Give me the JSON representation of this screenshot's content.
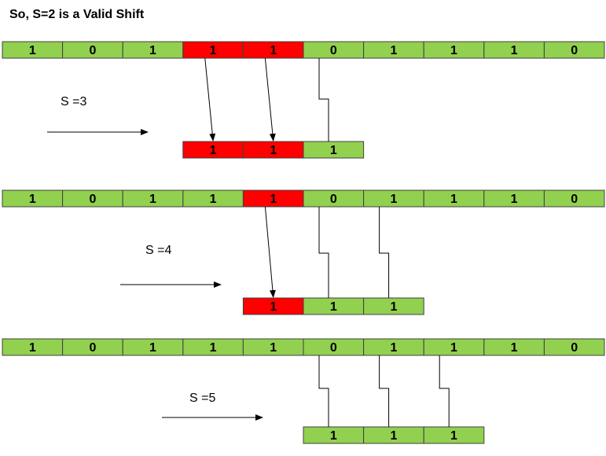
{
  "title": "So, S=2 is a Valid Shift",
  "colors": {
    "match": "#ff0000",
    "normal": "#92d050",
    "border": "#404040",
    "line": "#000000"
  },
  "panels": [
    {
      "text": [
        "1",
        "0",
        "1",
        "1",
        "1",
        "0",
        "1",
        "1",
        "1",
        "0"
      ],
      "text_match": [
        false,
        false,
        false,
        true,
        true,
        false,
        false,
        false,
        false,
        false
      ],
      "shift_label": "S =3",
      "shift": 3,
      "pattern": [
        "1",
        "1",
        "1"
      ],
      "pattern_match": [
        true,
        true,
        false
      ]
    },
    {
      "text": [
        "1",
        "0",
        "1",
        "1",
        "1",
        "0",
        "1",
        "1",
        "1",
        "0"
      ],
      "text_match": [
        false,
        false,
        false,
        false,
        true,
        false,
        false,
        false,
        false,
        false
      ],
      "shift_label": "S =4",
      "shift": 4,
      "pattern": [
        "1",
        "1",
        "1"
      ],
      "pattern_match": [
        true,
        false,
        false
      ]
    },
    {
      "text": [
        "1",
        "0",
        "1",
        "1",
        "1",
        "0",
        "1",
        "1",
        "1",
        "0"
      ],
      "text_match": [
        false,
        false,
        false,
        false,
        false,
        false,
        false,
        false,
        false,
        false
      ],
      "shift_label": "S =5",
      "shift": 5,
      "pattern": [
        "1",
        "1",
        "1"
      ],
      "pattern_match": [
        false,
        false,
        false
      ]
    }
  ]
}
